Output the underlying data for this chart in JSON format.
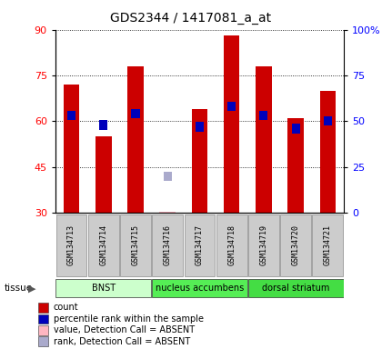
{
  "title": "GDS2344 / 1417081_a_at",
  "samples": [
    "GSM134713",
    "GSM134714",
    "GSM134715",
    "GSM134716",
    "GSM134717",
    "GSM134718",
    "GSM134719",
    "GSM134720",
    "GSM134721"
  ],
  "bar_values": [
    72,
    55,
    78,
    30.5,
    64,
    88,
    78,
    61,
    70
  ],
  "bar_absent": [
    false,
    false,
    false,
    true,
    false,
    false,
    false,
    false,
    false
  ],
  "percentile_values": [
    53,
    48,
    54,
    20,
    47,
    58,
    53,
    46,
    50
  ],
  "percentile_absent": [
    false,
    false,
    false,
    true,
    false,
    false,
    false,
    false,
    false
  ],
  "ylim_left": [
    30,
    90
  ],
  "ylim_right": [
    0,
    100
  ],
  "yticks_left": [
    30,
    45,
    60,
    75,
    90
  ],
  "yticks_right": [
    0,
    25,
    50,
    75,
    100
  ],
  "bar_color": "#CC0000",
  "bar_absent_color": "#FFB6C1",
  "percentile_color": "#0000BB",
  "percentile_absent_color": "#AAAACC",
  "tissue_groups": [
    {
      "label": "BNST",
      "start": 0,
      "end": 3,
      "color": "#CCFFCC"
    },
    {
      "label": "nucleus accumbens",
      "start": 3,
      "end": 6,
      "color": "#55EE55"
    },
    {
      "label": "dorsal striatum",
      "start": 6,
      "end": 9,
      "color": "#44DD44"
    }
  ],
  "legend_items": [
    {
      "color": "#CC0000",
      "label": "count"
    },
    {
      "color": "#0000BB",
      "label": "percentile rank within the sample"
    },
    {
      "color": "#FFB6C1",
      "label": "value, Detection Call = ABSENT"
    },
    {
      "color": "#AAAACC",
      "label": "rank, Detection Call = ABSENT"
    }
  ],
  "fig_bg": "#ffffff",
  "plot_bg": "#ffffff"
}
